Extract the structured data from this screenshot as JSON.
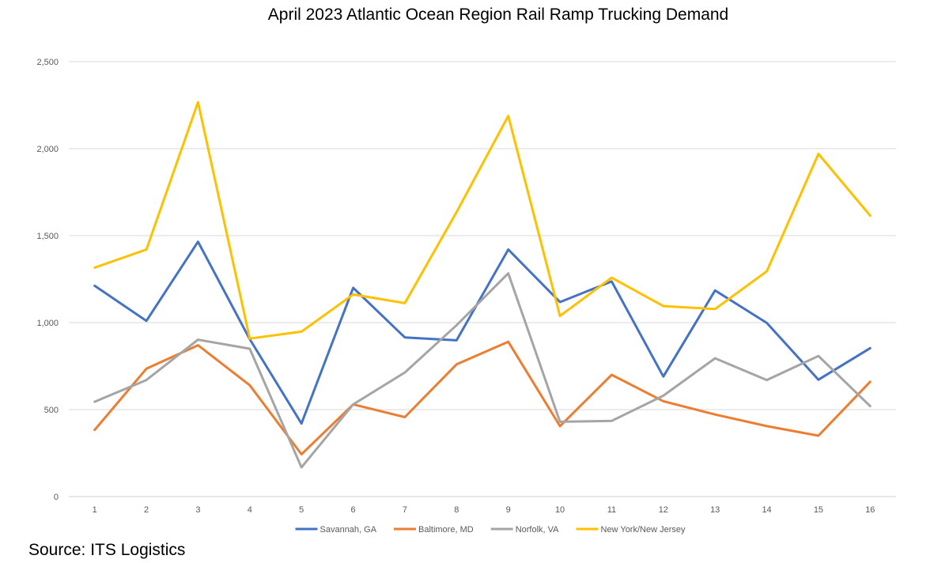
{
  "title": "April 2023 Atlantic Ocean Region Rail Ramp Trucking Demand",
  "source": "Source: ITS Logistics",
  "chart_data": {
    "type": "line",
    "title": "April 2023 Atlantic Ocean Region Rail Ramp Trucking Demand",
    "xlabel": "",
    "ylabel": "",
    "categories": [
      "1",
      "2",
      "3",
      "4",
      "5",
      "6",
      "7",
      "8",
      "9",
      "10",
      "11",
      "12",
      "13",
      "14",
      "15",
      "16"
    ],
    "yticks": [
      "0",
      "500",
      "1,000",
      "1,500",
      "2,000",
      "2,500"
    ],
    "ylim": [
      0,
      2500
    ],
    "grid": true,
    "legend_position": "bottom",
    "series": [
      {
        "name": "Savannah, GA",
        "color": "#4472C4",
        "values": [
          1212,
          1010,
          1465,
          905,
          420,
          1200,
          915,
          898,
          1420,
          1118,
          1237,
          690,
          1185,
          998,
          672,
          853
        ]
      },
      {
        "name": "Baltimore, MD",
        "color": "#ED7D31",
        "values": [
          383,
          735,
          870,
          640,
          243,
          530,
          457,
          760,
          890,
          405,
          700,
          548,
          472,
          405,
          350,
          660
        ]
      },
      {
        "name": "Norfolk, VA",
        "color": "#A5A5A5",
        "values": [
          545,
          670,
          902,
          850,
          168,
          530,
          713,
          985,
          1283,
          430,
          435,
          580,
          795,
          670,
          808,
          520
        ]
      },
      {
        "name": "New York/New Jersey",
        "color": "#FFC000",
        "values": [
          1316,
          1420,
          2267,
          908,
          948,
          1162,
          1112,
          1635,
          2188,
          1038,
          1258,
          1095,
          1078,
          1295,
          1970,
          1615
        ]
      }
    ]
  }
}
